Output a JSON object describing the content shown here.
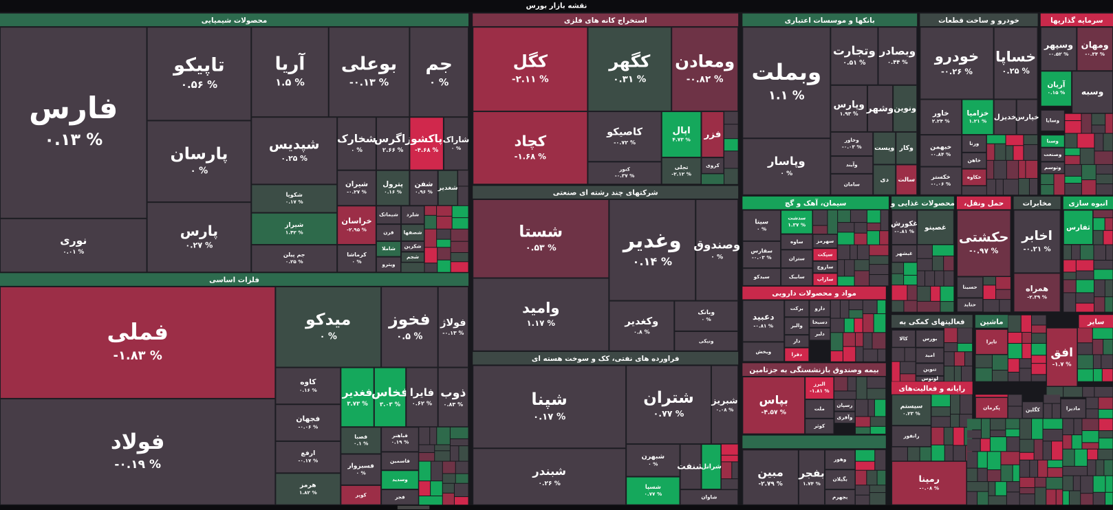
{
  "title": "نقشه بازار بورس",
  "sectors": [
    {
      "name": "محصولات شیمیایی",
      "tiles": [
        {
          "symbol": "فارس",
          "change": "۰.۱۳ %"
        },
        {
          "symbol": "نوری",
          "change": "۰.۰۱ %"
        },
        {
          "symbol": "تاپیکو",
          "change": "۰.۵۶ %"
        },
        {
          "symbol": "پارسان",
          "change": "۰ %"
        },
        {
          "symbol": "پارس",
          "change": "۰.۲۷ %"
        },
        {
          "symbol": "آریا",
          "change": "۱.۵ %"
        },
        {
          "symbol": "بوعلی",
          "change": "-۰.۱۳ %"
        },
        {
          "symbol": "جم",
          "change": "۰ %"
        },
        {
          "symbol": "شپدیس",
          "change": "۰.۲۵ %"
        },
        {
          "symbol": "شکویا",
          "change": "۰.۱۷ %"
        },
        {
          "symbol": "شیراز",
          "change": "۱.۴۲ %"
        },
        {
          "symbol": "جم پیلن",
          "change": "۰.۲۵ %"
        },
        {
          "symbol": "شخارک",
          "change": "۰ %"
        },
        {
          "symbol": "زاگرس",
          "change": "۲.۶۶ %"
        },
        {
          "symbol": "پاکشو",
          "change": "-۴.۶۸ %"
        },
        {
          "symbol": "شاراک",
          "change": "۰ %"
        },
        {
          "symbol": "شیران",
          "change": "-۰.۲۷ %"
        },
        {
          "symbol": "پترول",
          "change": "۰.۱۶ %"
        },
        {
          "symbol": "شفن",
          "change": "۰.۹۶ %"
        },
        {
          "symbol": "شغدیر"
        },
        {
          "symbol": "خراسان",
          "change": "-۲.۹۵ %"
        },
        {
          "symbol": "کرماشا",
          "change": "۰ %"
        },
        {
          "symbol": "شیماتک"
        },
        {
          "symbol": "قرن"
        },
        {
          "symbol": "شاملا"
        },
        {
          "symbol": "ویترو"
        },
        {
          "symbol": "شلرد"
        },
        {
          "symbol": "شصفها"
        },
        {
          "symbol": "شکربن"
        },
        {
          "symbol": "شجم"
        }
      ]
    },
    {
      "name": "فلزات اساسی",
      "tiles": [
        {
          "symbol": "فملی",
          "change": "-۱.۸۳ %"
        },
        {
          "symbol": "فولاد",
          "change": "-۰.۱۹ %"
        },
        {
          "symbol": "میدکو",
          "change": "۰ %"
        },
        {
          "symbol": "فخوز",
          "change": "۰.۵ %"
        },
        {
          "symbol": "فولاژ",
          "change": "-۰.۱۳ %"
        },
        {
          "symbol": "کاوه",
          "change": "۰.۱۶ %"
        },
        {
          "symbol": "فجهان",
          "change": "-۰.۰۶ %"
        },
        {
          "symbol": "ارفع",
          "change": "-۰.۱۷ %"
        },
        {
          "symbol": "هرمز",
          "change": "۱.۸۲ %"
        },
        {
          "symbol": "فغدیر",
          "change": "۳.۷۳ %"
        },
        {
          "symbol": "فخاس",
          "change": "۳.۰۳ %"
        },
        {
          "symbol": "فایرا",
          "change": "۰.۶۲ %"
        },
        {
          "symbol": "ذوب",
          "change": "۰.۸۳ %"
        },
        {
          "symbol": "فصبا",
          "change": "۰.۱ %"
        },
        {
          "symbol": "فسبزوار",
          "change": "۰ %"
        },
        {
          "symbol": "کویر"
        },
        {
          "symbol": "فباهنر",
          "change": "۰.۱۹ %"
        },
        {
          "symbol": "فاسمین"
        },
        {
          "symbol": "وسدید"
        },
        {
          "symbol": "فجر"
        }
      ]
    },
    {
      "name": "استخراج کانه های فلزی",
      "tiles": [
        {
          "symbol": "کگل",
          "change": "-۲.۱۱ %"
        },
        {
          "symbol": "کچاد",
          "change": "-۱.۶۸ %"
        },
        {
          "symbol": "کگهر",
          "change": "۰.۳۱ %"
        },
        {
          "symbol": "ومعادن",
          "change": "-۰.۸۲ %"
        },
        {
          "symbol": "کاصیکو",
          "change": "-۰.۷۲ %"
        },
        {
          "symbol": "کنور",
          "change": "-۰.۳۷ %"
        },
        {
          "symbol": "اپال",
          "change": "۴.۷۳ %"
        },
        {
          "symbol": "فزر"
        },
        {
          "symbol": "تجلی",
          "change": "-۲.۱۲ %"
        },
        {
          "symbol": "کروی"
        }
      ]
    },
    {
      "name": "شرکتهای چند رشته ای صنعتی",
      "tiles": [
        {
          "symbol": "شستا",
          "change": "۰.۵۳ %"
        },
        {
          "symbol": "وامید",
          "change": "۱.۱۷ %"
        },
        {
          "symbol": "وغدیر",
          "change": "۰.۱۴ %"
        },
        {
          "symbol": "وصندوق",
          "change": "۰ %"
        },
        {
          "symbol": "وکغدیر",
          "change": "۰.۸ %"
        },
        {
          "symbol": "وبانک",
          "change": "۰ %"
        },
        {
          "symbol": "ونیکی"
        }
      ]
    },
    {
      "name": "فراورده های نفتی، کک و سوخت هسته ای",
      "tiles": [
        {
          "symbol": "شپنا",
          "change": "۰.۱۷ %"
        },
        {
          "symbol": "شبندر",
          "change": "۰.۲۶ %"
        },
        {
          "symbol": "شتران",
          "change": "۰.۷۷ %"
        },
        {
          "symbol": "شبریز",
          "change": "۰.۰۸ %"
        },
        {
          "symbol": "شبهرن",
          "change": "۰ %"
        },
        {
          "symbol": "شسپا",
          "change": "۰.۷۷ %"
        },
        {
          "symbol": "شنفت"
        },
        {
          "symbol": "شرانل"
        },
        {
          "symbol": "شاوان"
        }
      ]
    },
    {
      "name": "بانکها و موسسات اعتباری",
      "tiles": [
        {
          "symbol": "وبملت",
          "change": "۱.۱ %"
        },
        {
          "symbol": "وپاسار",
          "change": "۰ %"
        },
        {
          "symbol": "وتجارت",
          "change": "۰.۵۱ %"
        },
        {
          "symbol": "وبصادر",
          "change": "۰.۴۴ %"
        },
        {
          "symbol": "وپارس",
          "change": "۱.۹۳ %"
        },
        {
          "symbol": "وشهر"
        },
        {
          "symbol": "ونوین"
        },
        {
          "symbol": "وخاور",
          "change": "-۰.۰۳ %"
        },
        {
          "symbol": "وپست"
        },
        {
          "symbol": "وکار"
        },
        {
          "symbol": "وآیند"
        },
        {
          "symbol": "سامان"
        },
        {
          "symbol": "دی"
        },
        {
          "symbol": "سالت"
        }
      ]
    },
    {
      "name": "خودرو و ساخت قطعات",
      "tiles": [
        {
          "symbol": "خودرو",
          "change": "-۰.۲۶ %"
        },
        {
          "symbol": "خساپا",
          "change": "۰.۲۵ %"
        },
        {
          "symbol": "خاور",
          "change": "۲.۲۴ %"
        },
        {
          "symbol": "خزامیا",
          "change": "۱.۲۱ %"
        },
        {
          "symbol": "خدیزل"
        },
        {
          "symbol": "خپارس"
        },
        {
          "symbol": "خبهمن",
          "change": "-۰.۸۴ %"
        },
        {
          "symbol": "ورنا"
        },
        {
          "symbol": "خاهن"
        },
        {
          "symbol": "خکستر",
          "change": "-۰.۰۶ %"
        },
        {
          "symbol": "خکاوه"
        }
      ]
    },
    {
      "name": "سرمایه گذاریها",
      "tiles": [
        {
          "symbol": "وسپهر",
          "change": "-۰.۵۲ %"
        },
        {
          "symbol": "ومهان",
          "change": "-۰.۳۴ %"
        },
        {
          "symbol": "آریان",
          "change": "۰.۱۵ %"
        },
        {
          "symbol": "وسبه"
        },
        {
          "symbol": "وسایا"
        },
        {
          "symbol": "وسنا"
        },
        {
          "symbol": "وصنعت"
        },
        {
          "symbol": "وتوسم"
        }
      ]
    },
    {
      "name": "سیمان، آهک و گچ",
      "tiles": [
        {
          "symbol": "سیتا",
          "change": "۰ %"
        },
        {
          "symbol": "سدشت",
          "change": "۱.۳۷ %"
        },
        {
          "symbol": "سفارس",
          "change": "-۰.۰۳ %"
        },
        {
          "symbol": "ساوه"
        },
        {
          "symbol": "سهرمز"
        },
        {
          "symbol": "سپکت"
        },
        {
          "symbol": "ستران"
        },
        {
          "symbol": "ساروج"
        },
        {
          "symbol": "سیدکو"
        },
        {
          "symbol": "سابیک"
        },
        {
          "symbol": "ساراب"
        }
      ]
    },
    {
      "name": "محصولات غذایی و",
      "tiles": [
        {
          "symbol": "غکورش",
          "change": "-۰.۸۱ %"
        },
        {
          "symbol": "غصینو"
        },
        {
          "symbol": "غبشهر"
        }
      ]
    },
    {
      "name": "حمل ونقل،",
      "tiles": [
        {
          "symbol": "حکشتی",
          "change": "-۰.۹۷ %"
        },
        {
          "symbol": "حسینا"
        },
        {
          "symbol": "حتاید"
        }
      ]
    },
    {
      "name": "مخابرات",
      "tiles": [
        {
          "symbol": "اخابر",
          "change": "-۰.۲۱ %"
        },
        {
          "symbol": "همراه",
          "change": "-۲.۳۹ %"
        }
      ]
    },
    {
      "name": "انبوه سازی",
      "tiles": [
        {
          "symbol": "ثفارس"
        }
      ]
    },
    {
      "name": "مواد و محصولات دارویی",
      "tiles": [
        {
          "symbol": "دعبید",
          "change": "-۰.۸۱ %"
        },
        {
          "symbol": "ویخش"
        },
        {
          "symbol": "برکت"
        },
        {
          "symbol": "دارو"
        },
        {
          "symbol": "والبر"
        },
        {
          "symbol": "دسبحا"
        },
        {
          "symbol": "دلبر"
        },
        {
          "symbol": "دار"
        },
        {
          "symbol": "دفرا"
        }
      ]
    },
    {
      "name": "بیمه وصندوق بازنشستگی به جزتامین",
      "tiles": [
        {
          "symbol": "بپاس",
          "change": "-۴.۵۷ %"
        },
        {
          "symbol": "البرز",
          "change": "-۱.۸۱ %"
        },
        {
          "symbol": "ملت"
        },
        {
          "symbol": "رسپان"
        },
        {
          "symbol": "وآفری"
        },
        {
          "symbol": "کوثر"
        }
      ]
    },
    {
      "tiles": [
        {
          "symbol": "مبین",
          "change": "-۲.۷۹ %"
        },
        {
          "symbol": "بفجر",
          "change": "۱.۷۴ %"
        },
        {
          "symbol": "وهور"
        },
        {
          "symbol": "بگیلان"
        },
        {
          "symbol": "بجهرم"
        }
      ]
    },
    {
      "name": "فعالیتهای کمکی به",
      "tiles": [
        {
          "symbol": "کالا"
        },
        {
          "symbol": "بورس"
        },
        {
          "symbol": "امید"
        },
        {
          "symbol": "تنوین"
        },
        {
          "symbol": "لوتوس"
        }
      ]
    },
    {
      "name": "ماشین",
      "tiles": [
        {
          "symbol": "تایرا"
        }
      ]
    },
    {
      "name": "سایر",
      "tiles": [
        {
          "symbol": "افق",
          "change": "-۱.۷ %"
        }
      ]
    },
    {
      "name": "رایانه و فعالیت‌های",
      "tiles": [
        {
          "symbol": "سیستم",
          "change": "۰.۲۳ %"
        },
        {
          "symbol": "رانفور"
        },
        {
          "symbol": "پکرمان"
        },
        {
          "symbol": "رمپنا",
          "change": "-۰.۰۸ %"
        },
        {
          "symbol": "کگلین"
        },
        {
          "symbol": "مادیرا"
        }
      ]
    }
  ]
}
